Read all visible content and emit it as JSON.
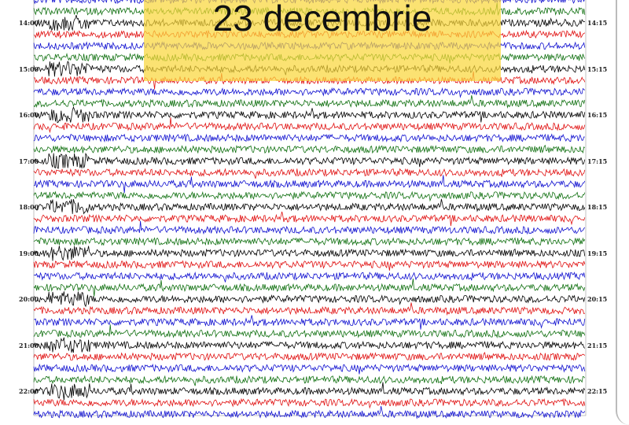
{
  "chart_data": {
    "type": "line",
    "subtype": "helicorder",
    "title": "23 decembrie",
    "trace_colors": [
      "#000000",
      "#e01010",
      "#1010d0",
      "#107010"
    ],
    "left_time_labels": [
      "14:00",
      "15:00",
      "16:00",
      "17:00",
      "18:00",
      "19:00",
      "20:00",
      "21:00",
      "22:00"
    ],
    "right_time_labels": [
      "14:15",
      "15:15",
      "16:15",
      "17:15",
      "18:15",
      "19:15",
      "20:15",
      "21:15",
      "22:15"
    ],
    "traces_per_hour": 4,
    "grid": false,
    "banner_color": "#fad73c"
  }
}
